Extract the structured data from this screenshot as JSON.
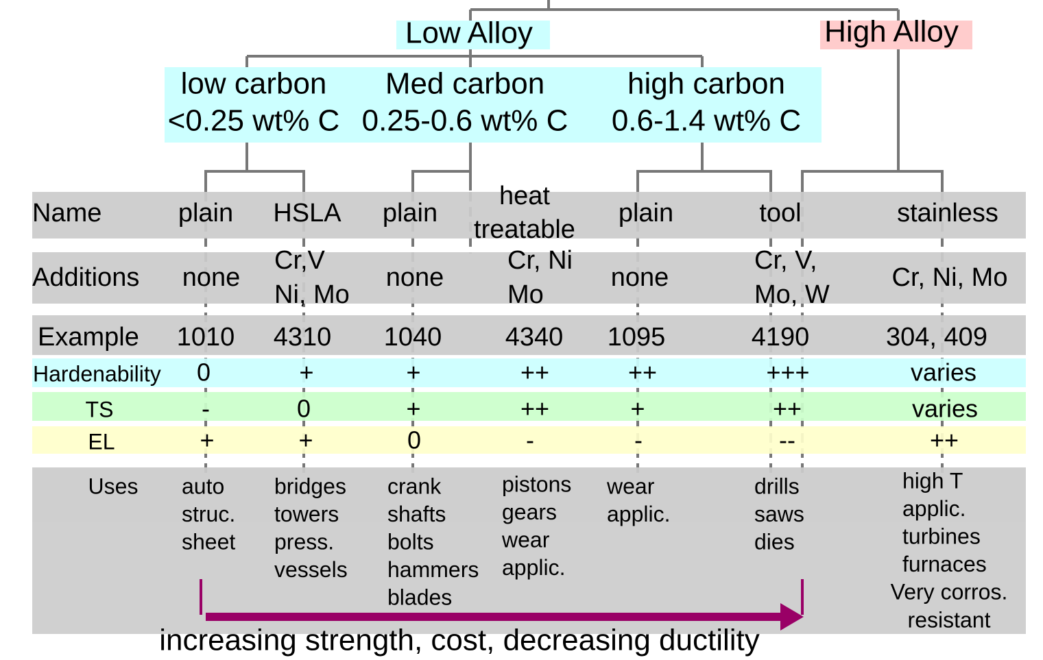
{
  "groups": {
    "low_alloy": "Low Alloy",
    "high_alloy": "High Alloy"
  },
  "carbon": [
    {
      "name": "low carbon",
      "range": "<0.25 wt% C"
    },
    {
      "name": "Med carbon",
      "range": "0.25-0.6 wt% C"
    },
    {
      "name": "high carbon",
      "range": "0.6-1.4 wt% C"
    }
  ],
  "table": {
    "rows": [
      {
        "label": "Name",
        "cells": [
          "plain",
          "HSLA",
          "plain",
          [
            "heat",
            "treatable"
          ],
          "plain",
          "tool",
          "stainless"
        ]
      },
      {
        "label": "Additions",
        "cells": [
          "none",
          [
            "Cr,V",
            "Ni, Mo"
          ],
          "none",
          [
            "Cr, Ni",
            "Mo"
          ],
          "none",
          [
            "Cr, V,",
            "Mo, W"
          ],
          "Cr, Ni, Mo"
        ]
      },
      {
        "label": "Example",
        "cells": [
          "1010",
          "4310",
          "1040",
          "4340",
          "1095",
          "4190",
          "304, 409"
        ]
      },
      {
        "label": "Hardenability",
        "cells": [
          "0",
          "+",
          "+",
          "++",
          "++",
          "+++",
          "varies"
        ]
      },
      {
        "label": "TS",
        "cells": [
          "-",
          "0",
          "+",
          "++",
          "+",
          "++",
          "varies"
        ]
      },
      {
        "label": "EL",
        "cells": [
          "+",
          "+",
          "0",
          "-",
          "-",
          "--",
          "++"
        ]
      },
      {
        "label": "Uses",
        "cells": [
          [
            "auto",
            "struc.",
            "sheet"
          ],
          [
            "bridges",
            "towers",
            "press.",
            "vessels"
          ],
          [
            "crank",
            "shafts",
            "bolts",
            "hammers",
            "blades"
          ],
          [
            "pistons",
            "gears",
            "wear",
            "applic."
          ],
          [
            "wear",
            "applic."
          ],
          [
            "drills",
            "saws",
            "dies"
          ],
          [
            "high T",
            "applic.",
            "turbines",
            "furnaces"
          ]
        ]
      }
    ]
  },
  "note": [
    "Very corros.",
    "resistant"
  ],
  "arrow_label": "increasing strength, cost, decreasing ductility"
}
